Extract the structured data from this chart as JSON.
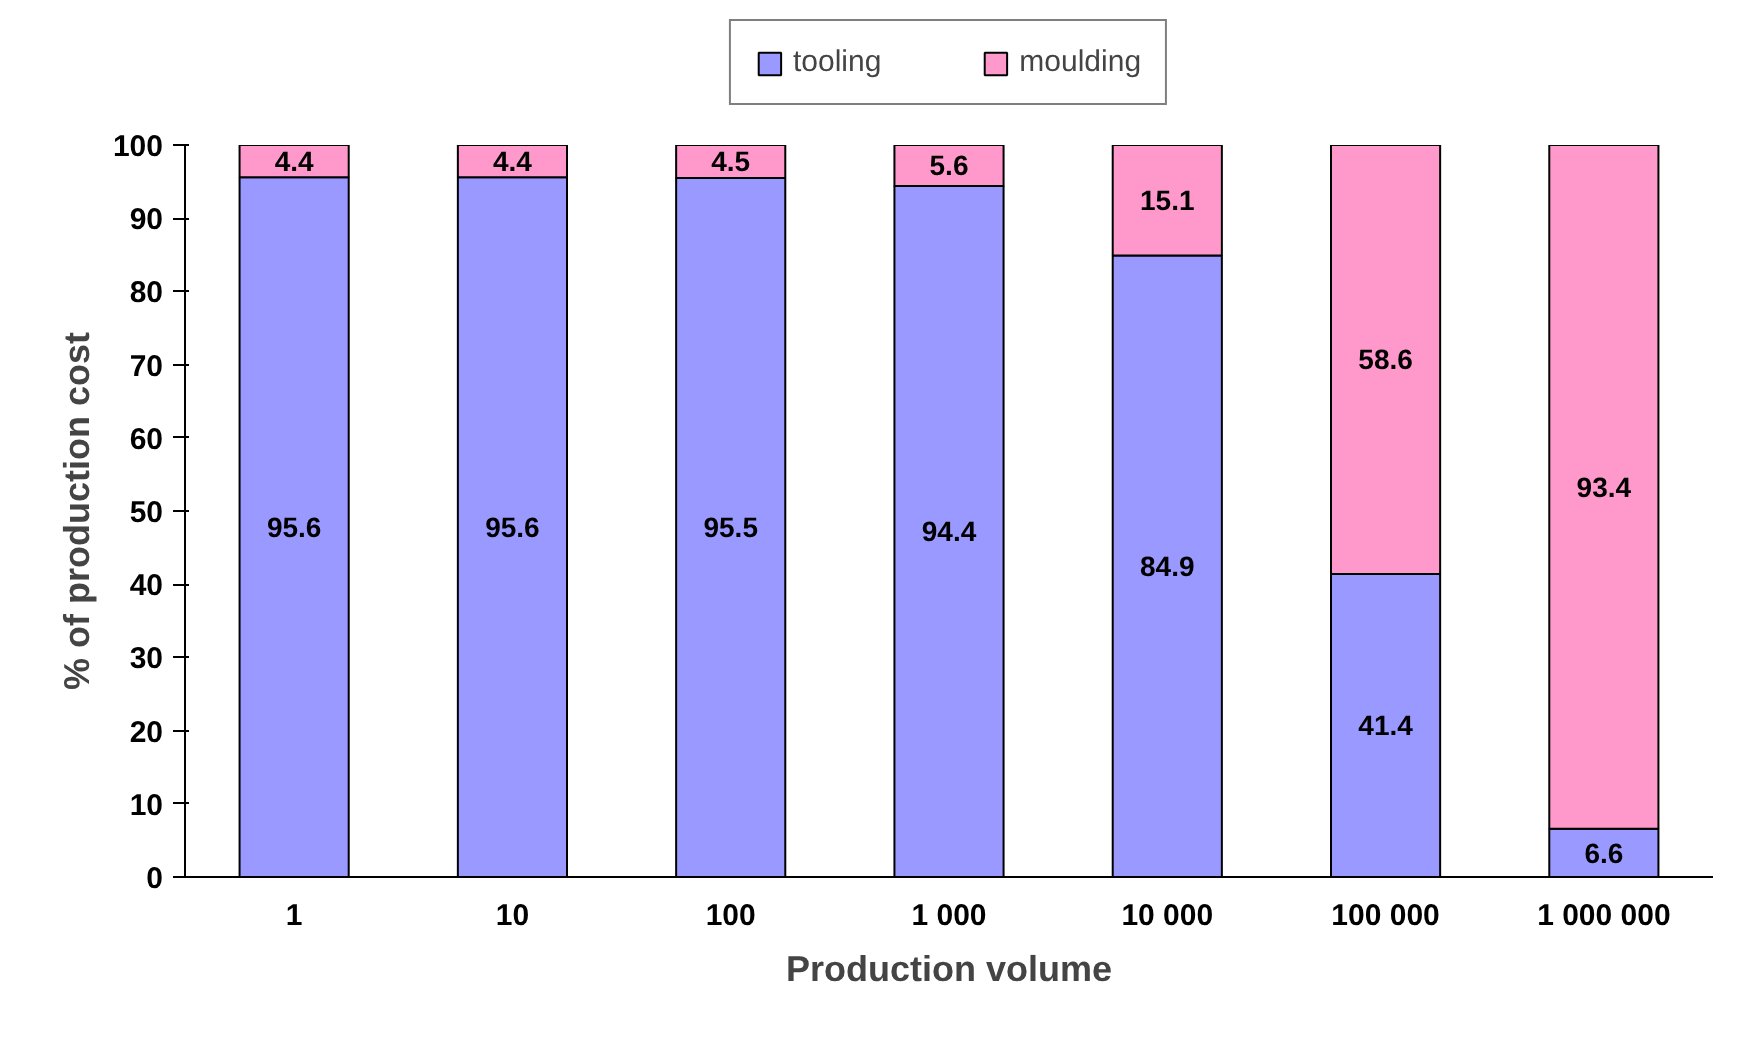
{
  "chart_data": {
    "type": "bar",
    "stacked": true,
    "xlabel": "Production volume",
    "ylabel": "% of production cost",
    "categories": [
      "1",
      "10",
      "100",
      "1 000",
      "10 000",
      "100 000",
      "1 000 000"
    ],
    "series": [
      {
        "name": "tooling",
        "color": "#9999ff",
        "values": [
          95.6,
          95.6,
          95.5,
          94.4,
          84.9,
          41.4,
          6.6
        ]
      },
      {
        "name": "moulding",
        "color": "#ff99cc",
        "values": [
          4.4,
          4.4,
          4.5,
          5.6,
          15.1,
          58.6,
          93.4
        ]
      }
    ],
    "ylim": [
      0,
      100
    ],
    "yticks": [
      0,
      10,
      20,
      30,
      40,
      50,
      60,
      70,
      80,
      90,
      100
    ],
    "data_labels": true,
    "legend": "top",
    "grid": false
  }
}
